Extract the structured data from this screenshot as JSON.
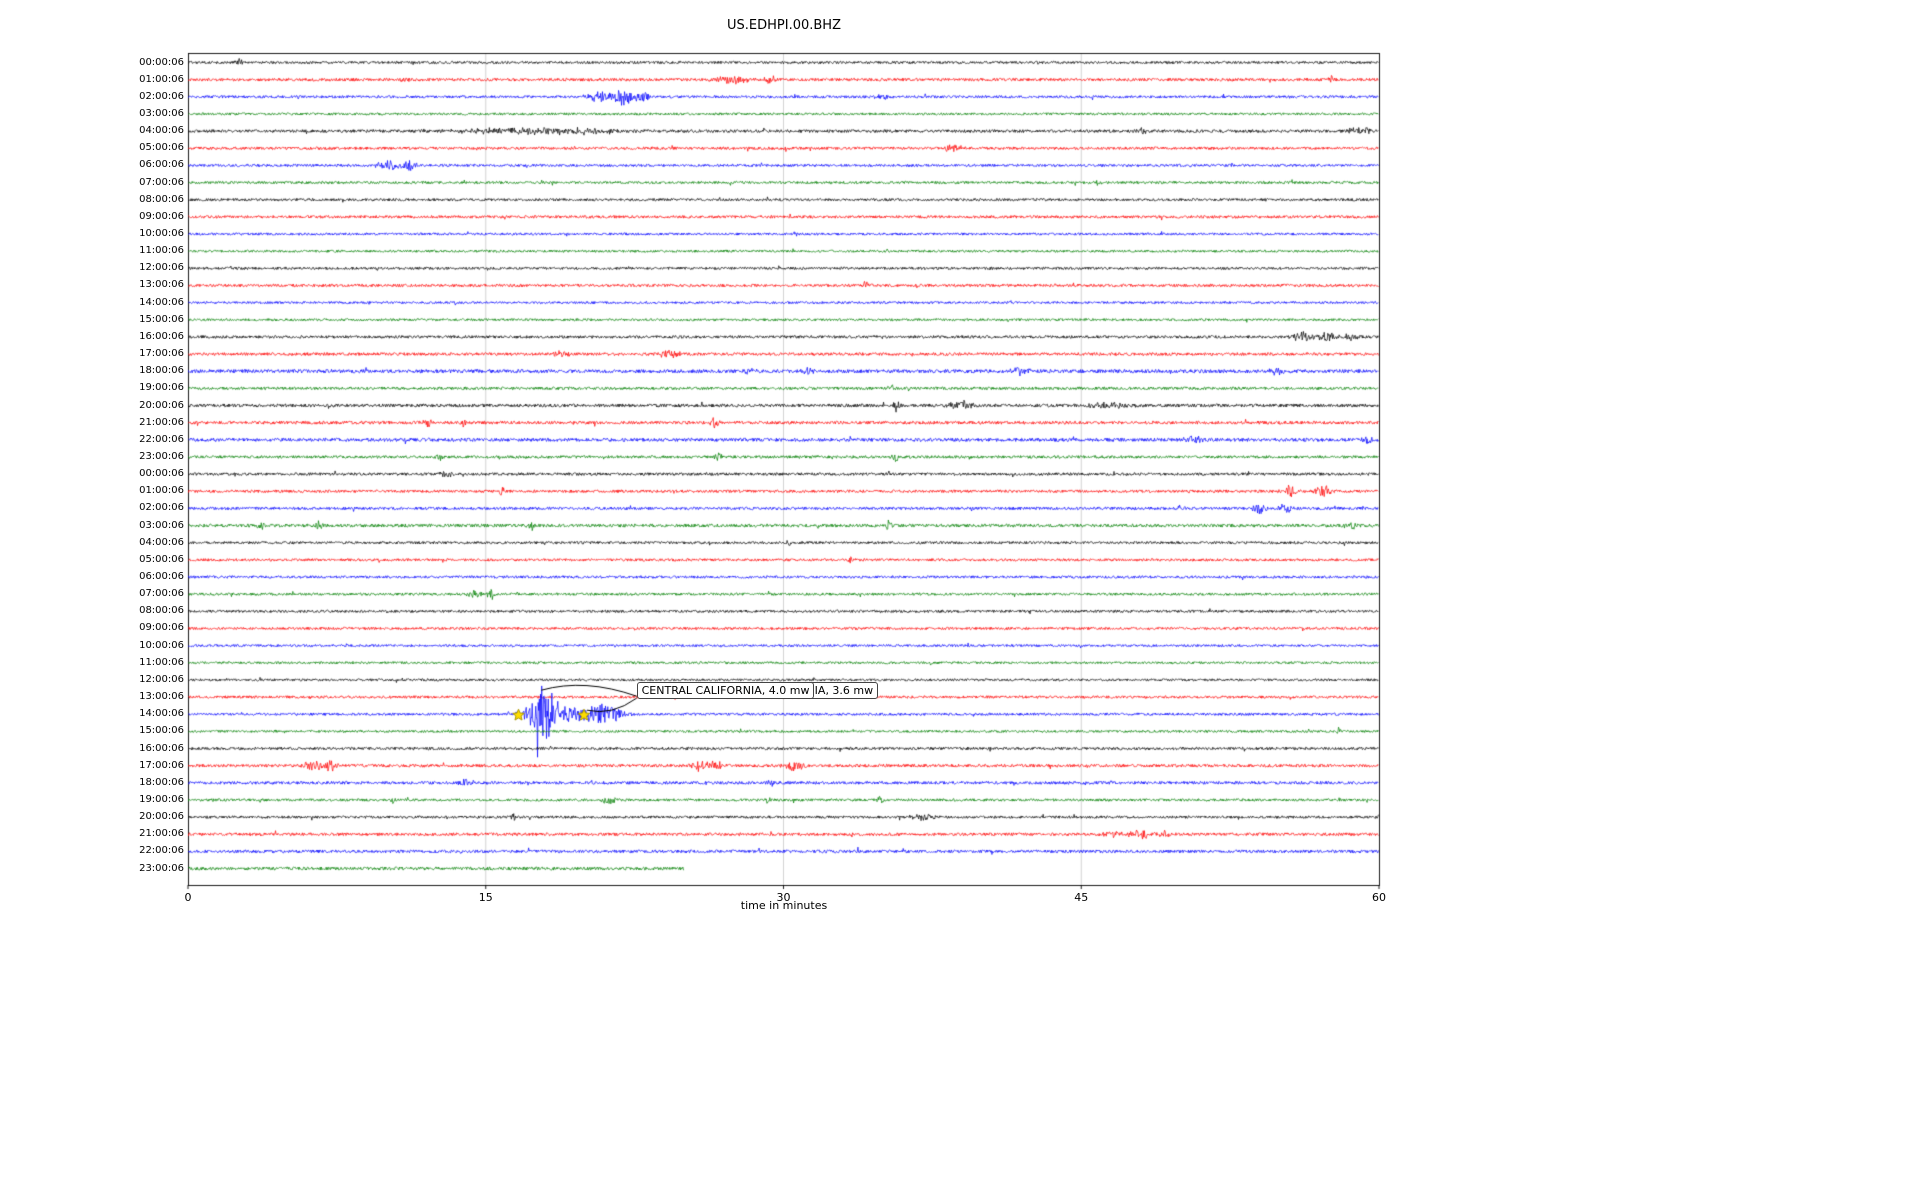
{
  "chart_data": {
    "type": "line",
    "title": "US.EDHPI.00.BHZ",
    "xlabel": "time in minutes",
    "x_range": [
      0,
      60
    ],
    "x_ticks": [
      0,
      15,
      30,
      45,
      60
    ],
    "gridlines_x": [
      15,
      30,
      45
    ],
    "grid": true,
    "colors_cycle": [
      "#000000",
      "#ff0000",
      "#0000ff",
      "#008000"
    ],
    "seed": 987654321,
    "star_color": "#ffdd00",
    "rows": [
      {
        "label": "00:00:06",
        "c": 0,
        "n": 1.3,
        "end": 60,
        "events": [
          [
            2.55,
            4,
            0.12
          ]
        ]
      },
      {
        "label": "01:00:06",
        "c": 1,
        "n": 1.5,
        "end": 60,
        "events": [
          [
            10.9,
            3.5,
            0.15
          ],
          [
            27.4,
            4,
            0.6
          ],
          [
            29.3,
            4,
            0.25
          ],
          [
            57.6,
            5,
            0.1
          ]
        ]
      },
      {
        "label": "02:00:06",
        "c": 2,
        "n": 1.3,
        "end": 60,
        "events": [
          [
            20.7,
            6,
            0.4
          ],
          [
            21.9,
            9,
            0.35
          ],
          [
            22.9,
            5,
            0.3
          ],
          [
            35,
            3,
            0.3
          ]
        ]
      },
      {
        "label": "03:00:06",
        "c": 3,
        "n": 1.2,
        "end": 60,
        "events": []
      },
      {
        "label": "04:00:06",
        "c": 0,
        "n": 1.5,
        "end": 60,
        "events": [
          [
            16.5,
            3,
            2.0
          ],
          [
            20,
            2.5,
            1.5
          ],
          [
            48,
            3,
            0.3
          ],
          [
            59,
            3.5,
            0.5
          ]
        ]
      },
      {
        "label": "05:00:06",
        "c": 1,
        "n": 1.4,
        "end": 60,
        "events": [
          [
            38.5,
            4,
            0.35
          ]
        ]
      },
      {
        "label": "06:00:06",
        "c": 2,
        "n": 1.3,
        "end": 60,
        "events": [
          [
            10.2,
            4,
            0.5
          ],
          [
            11.2,
            7,
            0.22
          ]
        ]
      },
      {
        "label": "07:00:06",
        "c": 3,
        "n": 1.3,
        "end": 60,
        "events": [
          [
            45.8,
            3.5,
            0.12
          ]
        ]
      },
      {
        "label": "08:00:06",
        "c": 0,
        "n": 1.3,
        "end": 60,
        "events": []
      },
      {
        "label": "09:00:06",
        "c": 1,
        "n": 1.4,
        "end": 60,
        "events": []
      },
      {
        "label": "10:00:06",
        "c": 2,
        "n": 1.2,
        "end": 60,
        "events": []
      },
      {
        "label": "11:00:06",
        "c": 3,
        "n": 1.2,
        "end": 60,
        "events": []
      },
      {
        "label": "12:00:06",
        "c": 0,
        "n": 1.3,
        "end": 60,
        "events": []
      },
      {
        "label": "13:00:06",
        "c": 1,
        "n": 1.4,
        "end": 60,
        "events": [
          [
            34.1,
            4,
            0.1
          ]
        ]
      },
      {
        "label": "14:00:06",
        "c": 2,
        "n": 1.2,
        "end": 60,
        "events": []
      },
      {
        "label": "15:00:06",
        "c": 3,
        "n": 1.2,
        "end": 60,
        "events": []
      },
      {
        "label": "16:00:06",
        "c": 0,
        "n": 1.4,
        "end": 60,
        "events": [
          [
            56.2,
            5,
            0.35
          ],
          [
            57.3,
            4.5,
            0.4
          ],
          [
            58.6,
            3.5,
            0.25
          ]
        ]
      },
      {
        "label": "17:00:06",
        "c": 1,
        "n": 1.5,
        "end": 60,
        "events": [
          [
            18.8,
            3,
            0.25
          ],
          [
            24.2,
            3.5,
            0.4
          ]
        ]
      },
      {
        "label": "18:00:06",
        "c": 2,
        "n": 1.8,
        "end": 60,
        "events": [
          [
            28.3,
            3.5,
            0.25
          ],
          [
            31.2,
            3.5,
            0.25
          ],
          [
            41.9,
            3.5,
            0.35
          ],
          [
            54.9,
            3.5,
            0.35
          ]
        ]
      },
      {
        "label": "19:00:06",
        "c": 3,
        "n": 1.4,
        "end": 60,
        "events": [
          [
            35.4,
            3.5,
            0.12
          ]
        ]
      },
      {
        "label": "20:00:06",
        "c": 0,
        "n": 1.6,
        "end": 60,
        "events": [
          [
            35.7,
            7,
            0.1
          ],
          [
            38.9,
            4.5,
            0.45
          ],
          [
            46.5,
            2.5,
            0.8
          ]
        ]
      },
      {
        "label": "21:00:06",
        "c": 1,
        "n": 1.6,
        "end": 60,
        "events": [
          [
            12.1,
            4.5,
            0.15
          ],
          [
            13.9,
            4.5,
            0.15
          ],
          [
            26.5,
            4.5,
            0.15
          ]
        ]
      },
      {
        "label": "22:00:06",
        "c": 2,
        "n": 1.7,
        "end": 60,
        "events": [
          [
            50.7,
            4.5,
            0.35
          ],
          [
            59.4,
            4.5,
            0.25
          ]
        ]
      },
      {
        "label": "23:00:06",
        "c": 3,
        "n": 1.4,
        "end": 60,
        "events": [
          [
            12.7,
            3,
            0.15
          ],
          [
            26.7,
            5.5,
            0.12
          ],
          [
            35.6,
            5.5,
            0.12
          ]
        ]
      },
      {
        "label": "00:00:06",
        "c": 0,
        "n": 1.4,
        "end": 60,
        "events": [
          [
            13,
            2.5,
            0.3
          ]
        ]
      },
      {
        "label": "01:00:06",
        "c": 1,
        "n": 1.4,
        "end": 60,
        "events": [
          [
            15.8,
            4,
            0.1
          ],
          [
            55.5,
            5.5,
            0.25
          ],
          [
            57.2,
            5.5,
            0.25
          ]
        ]
      },
      {
        "label": "02:00:06",
        "c": 2,
        "n": 1.4,
        "end": 60,
        "events": [
          [
            50,
            3,
            0.15
          ],
          [
            54,
            5.5,
            0.25
          ],
          [
            55.3,
            4.5,
            0.25
          ]
        ]
      },
      {
        "label": "03:00:06",
        "c": 3,
        "n": 1.6,
        "end": 60,
        "events": [
          [
            3.7,
            4.5,
            0.15
          ],
          [
            6.6,
            4.5,
            0.12
          ],
          [
            17.3,
            4.5,
            0.12
          ],
          [
            35.3,
            4.5,
            0.12
          ],
          [
            58.7,
            4.5,
            0.15
          ]
        ]
      },
      {
        "label": "04:00:06",
        "c": 0,
        "n": 1.3,
        "end": 60,
        "events": [
          [
            30.3,
            3.5,
            0.1
          ]
        ]
      },
      {
        "label": "05:00:06",
        "c": 1,
        "n": 1.3,
        "end": 60,
        "events": [
          [
            33.4,
            3.5,
            0.1
          ]
        ]
      },
      {
        "label": "06:00:06",
        "c": 2,
        "n": 1.3,
        "end": 60,
        "events": []
      },
      {
        "label": "07:00:06",
        "c": 3,
        "n": 1.3,
        "end": 60,
        "events": [
          [
            14.5,
            4.5,
            0.25
          ],
          [
            15.3,
            5.5,
            0.18
          ]
        ]
      },
      {
        "label": "08:00:06",
        "c": 0,
        "n": 1.3,
        "end": 60,
        "events": []
      },
      {
        "label": "09:00:06",
        "c": 1,
        "n": 1.3,
        "end": 60,
        "events": []
      },
      {
        "label": "10:00:06",
        "c": 2,
        "n": 1.2,
        "end": 60,
        "events": []
      },
      {
        "label": "11:00:06",
        "c": 3,
        "n": 1.2,
        "end": 60,
        "events": []
      },
      {
        "label": "12:00:06",
        "c": 0,
        "n": 1.2,
        "end": 60,
        "events": []
      },
      {
        "label": "13:00:06",
        "c": 1,
        "n": 1.3,
        "end": 60,
        "events": []
      },
      {
        "label": "14:00:06",
        "c": 2,
        "n": 1.3,
        "end": 60,
        "events": [
          [
            17.65,
            32,
            0.12
          ],
          [
            17.9,
            22,
            0.55
          ],
          [
            19.2,
            7,
            1.2
          ],
          [
            21,
            11,
            0.55
          ]
        ]
      },
      {
        "label": "15:00:06",
        "c": 3,
        "n": 1.2,
        "end": 60,
        "events": [
          [
            58,
            3.5,
            0.08
          ]
        ]
      },
      {
        "label": "16:00:06",
        "c": 0,
        "n": 1.4,
        "end": 60,
        "events": []
      },
      {
        "label": "17:00:06",
        "c": 1,
        "n": 1.5,
        "end": 60,
        "events": [
          [
            6.3,
            5.5,
            0.35
          ],
          [
            7.2,
            5,
            0.25
          ],
          [
            25.8,
            5.5,
            0.3
          ],
          [
            26.6,
            4.5,
            0.25
          ],
          [
            30.5,
            4.5,
            0.4
          ]
        ]
      },
      {
        "label": "18:00:06",
        "c": 2,
        "n": 1.5,
        "end": 60,
        "events": [
          [
            14,
            3.5,
            0.35
          ],
          [
            29.4,
            3.5,
            0.12
          ]
        ]
      },
      {
        "label": "19:00:06",
        "c": 3,
        "n": 1.3,
        "end": 60,
        "events": [
          [
            10.3,
            3.5,
            0.08
          ],
          [
            21.2,
            4.5,
            0.25
          ],
          [
            29.2,
            3.5,
            0.08
          ],
          [
            34.9,
            3.5,
            0.15
          ]
        ]
      },
      {
        "label": "20:00:06",
        "c": 0,
        "n": 1.3,
        "end": 60,
        "events": [
          [
            16.4,
            4.5,
            0.08
          ],
          [
            37,
            3.5,
            0.45
          ]
        ]
      },
      {
        "label": "21:00:06",
        "c": 1,
        "n": 1.5,
        "end": 60,
        "events": [
          [
            46.6,
            3.5,
            0.3
          ],
          [
            48,
            4.5,
            0.4
          ],
          [
            49.2,
            3.5,
            0.25
          ]
        ]
      },
      {
        "label": "22:00:06",
        "c": 2,
        "n": 1.5,
        "end": 60,
        "events": [
          [
            33.7,
            3.5,
            0.15
          ]
        ]
      },
      {
        "label": "23:00:06",
        "c": 3,
        "n": 1.6,
        "end": 25,
        "events": []
      }
    ],
    "stars": [
      {
        "row": 38,
        "t": 16.65
      },
      {
        "row": 38,
        "t": 19.95
      }
    ],
    "annotations": [
      {
        "text": "CENTRAL CALIFORNIA, 4.0 mw",
        "row": 38,
        "t": 22.6
      },
      {
        "text": "IA, 3.6 mw",
        "row": 38,
        "t": 25.7
      }
    ]
  }
}
